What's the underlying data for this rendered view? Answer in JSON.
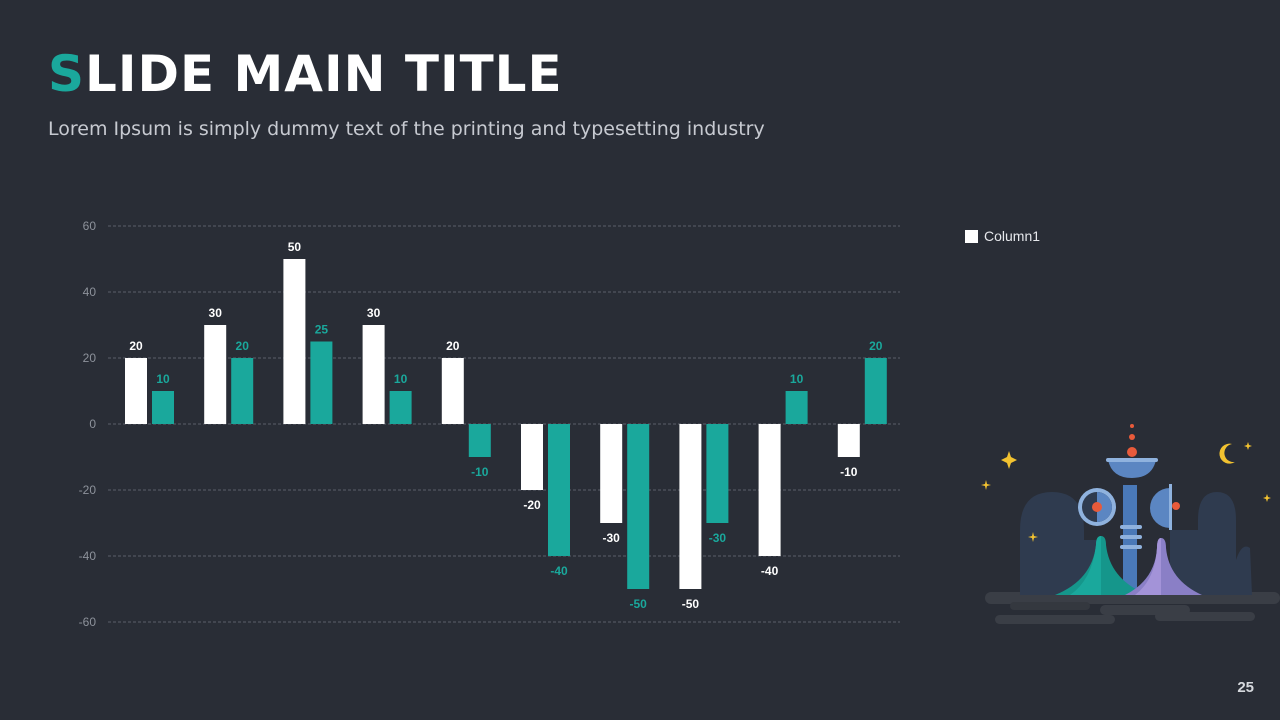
{
  "slide": {
    "title_first": "S",
    "title_rest": "LIDE MAIN TITLE",
    "subtitle": "Lorem Ipsum is simply dummy text of the printing and typesetting industry",
    "page_number": "25"
  },
  "colors": {
    "background": "#292d36",
    "accent": "#1aa89c",
    "series1": "#ffffff",
    "series2": "#1aa89c"
  },
  "chart_data": {
    "type": "bar",
    "categories": [
      "",
      "",
      "",
      "",
      "",
      "",
      "",
      "",
      "",
      ""
    ],
    "series": [
      {
        "name": "Column1",
        "values": [
          20,
          30,
          50,
          30,
          20,
          -20,
          -30,
          -50,
          -40,
          -10
        ]
      },
      {
        "values": [
          10,
          20,
          25,
          10,
          -10,
          -40,
          -50,
          -30,
          10,
          20
        ]
      }
    ],
    "yticks": [
      "60",
      "40",
      "20",
      "0",
      "-20",
      "-40",
      "-60"
    ],
    "ylim": [
      -60,
      60
    ],
    "grid": true,
    "legend": "right"
  },
  "illustration": {
    "icon": "night-castle-illustration"
  }
}
